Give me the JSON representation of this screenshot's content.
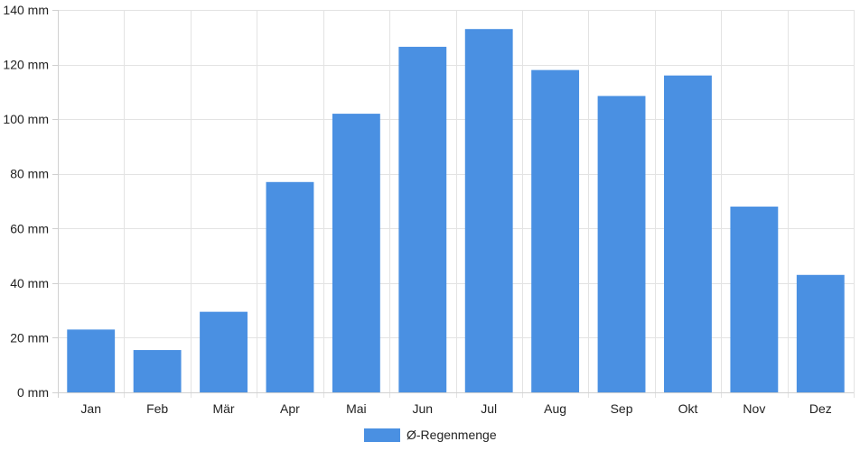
{
  "chart_data": {
    "type": "bar",
    "categories": [
      "Jan",
      "Feb",
      "Mär",
      "Apr",
      "Mai",
      "Jun",
      "Jul",
      "Aug",
      "Sep",
      "Okt",
      "Nov",
      "Dez"
    ],
    "series": [
      {
        "name": "Ø-Regenmenge",
        "values": [
          23,
          15.5,
          29.5,
          77,
          102,
          126.5,
          133,
          118,
          108.5,
          116,
          68,
          43
        ],
        "color": "#4a90e2"
      }
    ],
    "ylim": [
      0,
      140
    ],
    "yticks": [
      0,
      20,
      40,
      60,
      80,
      100,
      120,
      140
    ],
    "y_unit": "mm",
    "grid": true,
    "legend_position": "bottom-center",
    "title": "",
    "xlabel": "",
    "ylabel": ""
  }
}
